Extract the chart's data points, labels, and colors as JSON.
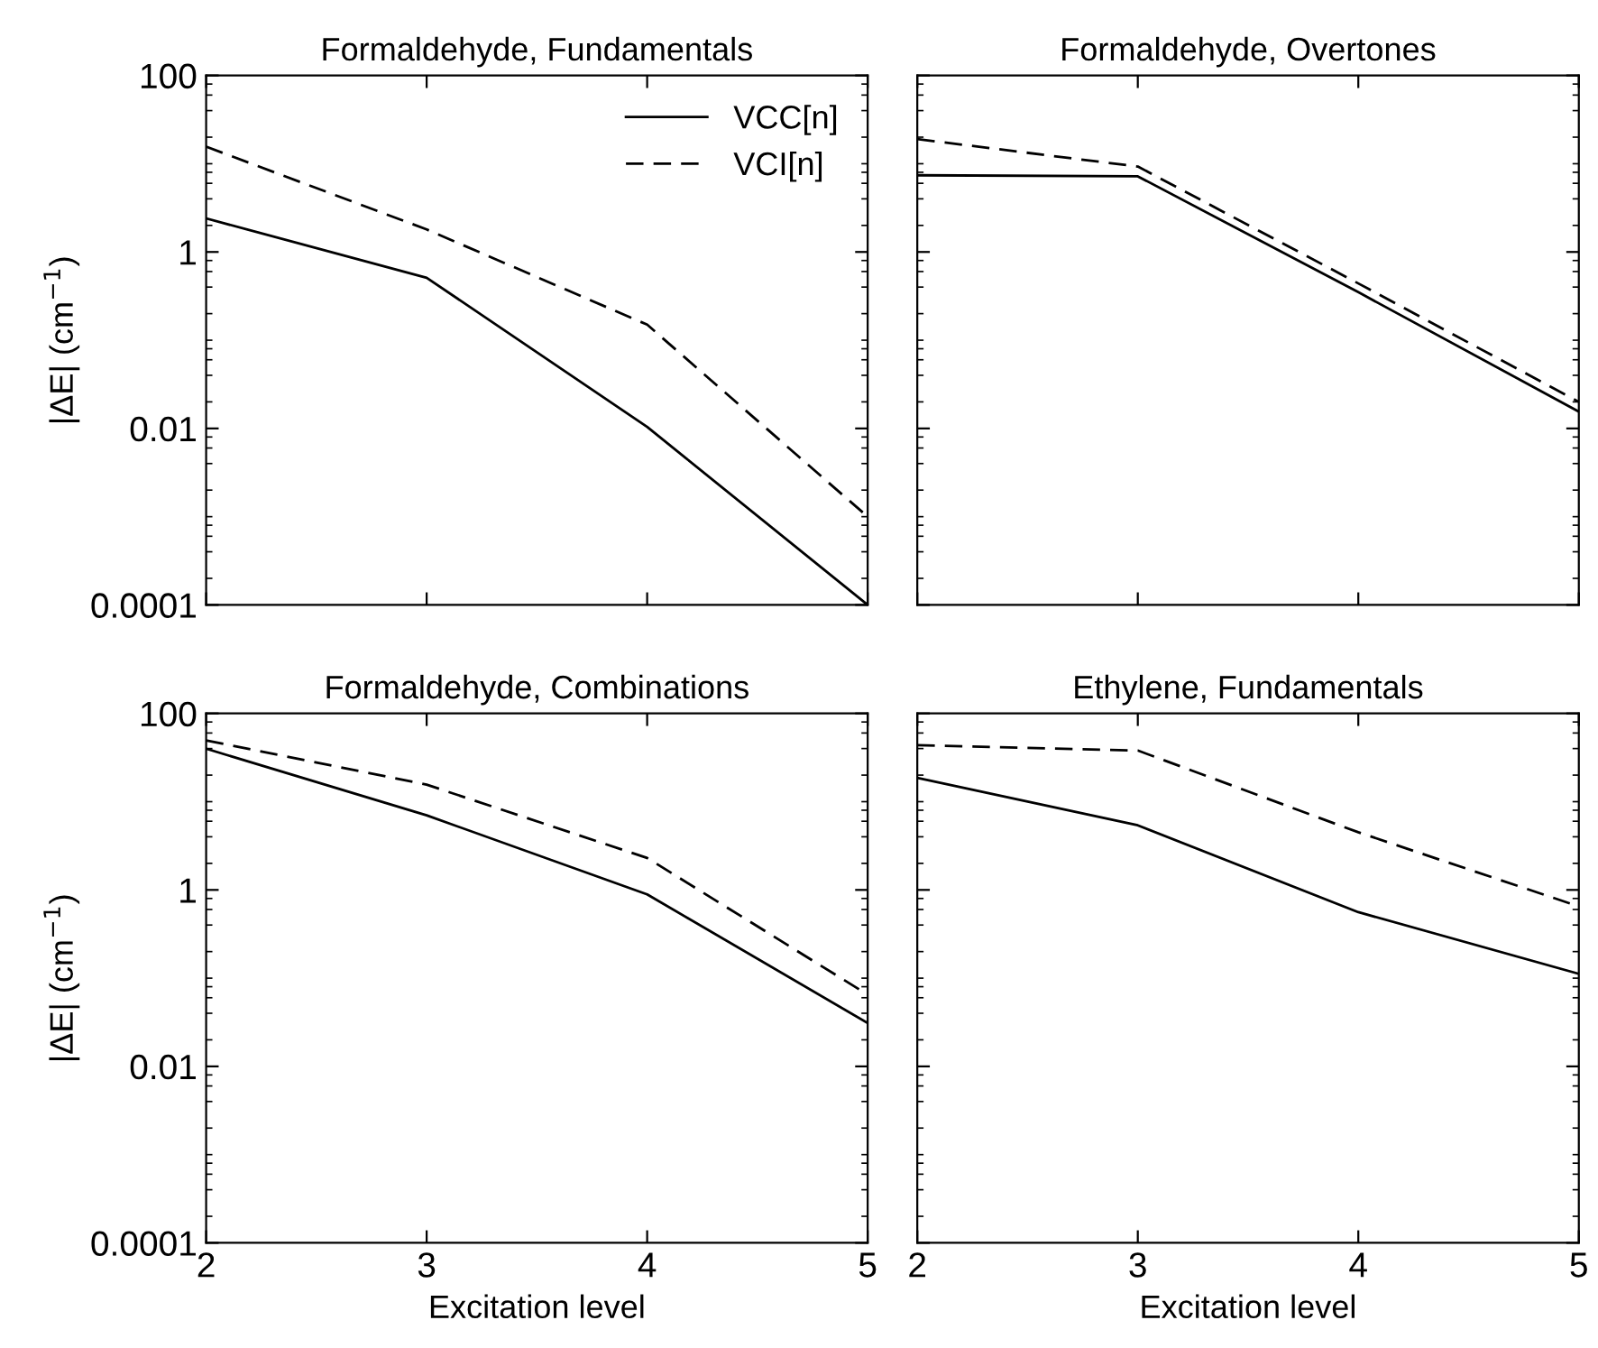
{
  "chart_data": [
    {
      "type": "line",
      "title": "Formaldehyde, Fundamentals",
      "ylabel": "|ΔE| (cm$^{−1}$)",
      "x": [
        2,
        3,
        4,
        5
      ],
      "xlim": [
        2,
        5
      ],
      "xticks": [
        2,
        3,
        4,
        5
      ],
      "ylim": [
        0.0001,
        100
      ],
      "yticks": [
        {
          "value": 0.0001,
          "label": "0.0001"
        },
        {
          "value": 0.01,
          "label": "0.01"
        },
        {
          "value": 1,
          "label": "1"
        },
        {
          "value": 100,
          "label": "100"
        }
      ],
      "log": "y",
      "grid": false,
      "legend": "top right",
      "tick_labels": "y",
      "marker": "none",
      "series": [
        {
          "name": "VCC[n]",
          "color": "#000000",
          "line_style": "solid",
          "values": [
            2.4,
            0.51,
            0.0104,
            0.0001
          ]
        },
        {
          "name": "VCI[n]",
          "color": "#000000",
          "line_style": "dashed",
          "values": [
            15.6,
            1.8,
            0.15,
            0.001
          ]
        }
      ]
    },
    {
      "type": "line",
      "title": "Formaldehyde, Overtones",
      "x": [
        2,
        3,
        4,
        5
      ],
      "xlim": [
        2,
        5
      ],
      "xticks": [
        2,
        3,
        4,
        5
      ],
      "ylim": [
        0.0001,
        100
      ],
      "yticks": [
        {
          "value": 0.0001,
          "label": null
        },
        {
          "value": 0.01,
          "label": null
        },
        {
          "value": 1,
          "label": null
        },
        {
          "value": 100,
          "label": null
        }
      ],
      "log": "y",
      "grid": false,
      "tick_labels": false,
      "marker": "none",
      "series": [
        {
          "color": "#000000",
          "line_style": "solid",
          "values": [
            7.4,
            7.2,
            0.35,
            0.0155
          ]
        },
        {
          "color": "#000000",
          "line_style": "dashed",
          "values": [
            19,
            9.3,
            0.44,
            0.02
          ]
        }
      ]
    },
    {
      "type": "line",
      "title": "Formaldehyde, Combinations",
      "xlabel": "Excitation level",
      "ylabel": "|ΔE| (cm$^{−1}$)",
      "x": [
        2,
        3,
        4,
        5
      ],
      "xlim": [
        2,
        5
      ],
      "xticks": [
        2,
        3,
        4,
        5
      ],
      "ylim": [
        0.0001,
        100
      ],
      "yticks": [
        {
          "value": 0.0001,
          "label": "0.0001"
        },
        {
          "value": 0.01,
          "label": "0.01"
        },
        {
          "value": 1,
          "label": "1"
        },
        {
          "value": 100,
          "label": "100"
        }
      ],
      "log": "y",
      "grid": false,
      "marker": "none",
      "series": [
        {
          "color": "#000000",
          "line_style": "solid",
          "values": [
            39.8,
            7.0,
            0.89,
            0.031
          ]
        },
        {
          "color": "#000000",
          "line_style": "dashed",
          "values": [
            49.5,
            15.6,
            2.3,
            0.065
          ]
        }
      ]
    },
    {
      "type": "line",
      "title": "Ethylene, Fundamentals",
      "xlabel": "Excitation level",
      "x": [
        2,
        3,
        4,
        5
      ],
      "xlim": [
        2,
        5
      ],
      "xticks": [
        2,
        3,
        4,
        5
      ],
      "ylim": [
        0.0001,
        100
      ],
      "yticks": [
        {
          "value": 0.0001,
          "label": null
        },
        {
          "value": 0.01,
          "label": null
        },
        {
          "value": 1,
          "label": null
        },
        {
          "value": 100,
          "label": null
        }
      ],
      "log": "y",
      "grid": false,
      "tick_labels": "x",
      "marker": "none",
      "series": [
        {
          "color": "#000000",
          "line_style": "solid",
          "values": [
            18.6,
            5.4,
            0.56,
            0.112
          ]
        },
        {
          "color": "#000000",
          "line_style": "dashed",
          "values": [
            43.7,
            38,
            4.5,
            0.65
          ]
        }
      ]
    }
  ]
}
